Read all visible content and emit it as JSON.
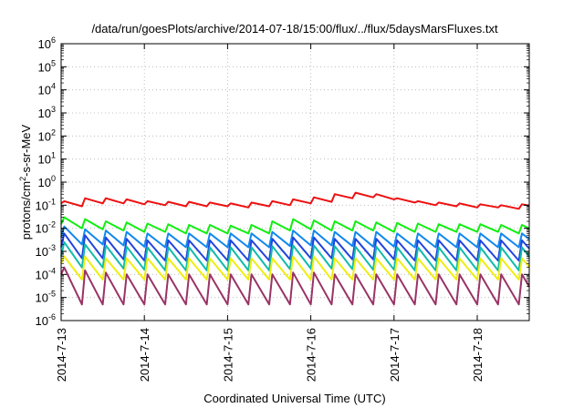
{
  "chart_data": {
    "type": "line",
    "title": "/data/run/goesPlots/archive/2014-07-18/15:00/flux/../flux/5daysMarsFluxes.txt",
    "xlabel": "Coordinated Universal Time (UTC)",
    "ylabel_base": "protons/cm",
    "ylabel_sup": "2",
    "ylabel_rest": "-s-sr-MeV",
    "yscale": "log",
    "ylim": [
      1e-06,
      1000000.0
    ],
    "y_ticks": [
      {
        "base": "10",
        "exp": "-6"
      },
      {
        "base": "10",
        "exp": "-5"
      },
      {
        "base": "10",
        "exp": "-4"
      },
      {
        "base": "10",
        "exp": "-3"
      },
      {
        "base": "10",
        "exp": "-2"
      },
      {
        "base": "10",
        "exp": "-1"
      },
      {
        "base": "10",
        "exp": "0"
      },
      {
        "base": "10",
        "exp": "1"
      },
      {
        "base": "10",
        "exp": "2"
      },
      {
        "base": "10",
        "exp": "3"
      },
      {
        "base": "10",
        "exp": "4"
      },
      {
        "base": "10",
        "exp": "5"
      },
      {
        "base": "10",
        "exp": "6"
      }
    ],
    "xlim": [
      "2014-07-13",
      "2014-07-18T15:00"
    ],
    "x_ticks": [
      "2014-7-13",
      "2014-7-14",
      "2014-7-15",
      "2014-7-16",
      "2014-7-17",
      "2014-7-18"
    ],
    "grid": true,
    "cycles_per_day": 4,
    "series": [
      {
        "color": "#ee1111",
        "start": 0.12,
        "peaks": [
          0.15,
          0.2,
          0.2,
          0.18,
          0.15,
          0.14,
          0.14,
          0.13,
          0.12,
          0.13,
          0.15,
          0.18,
          0.22,
          0.3,
          0.35,
          0.3,
          0.2,
          0.15,
          0.13,
          0.12,
          0.11,
          0.1,
          0.11,
          0.12,
          0.11,
          0.1,
          0.1,
          0.09,
          0.08,
          0.08,
          0.09,
          0.08,
          0.08,
          0.08,
          0.07,
          0.06,
          0.05,
          0.05,
          0.06,
          0.09
        ],
        "valleys": [
          0.09,
          0.12,
          0.12,
          0.11,
          0.1,
          0.09,
          0.09,
          0.09,
          0.08,
          0.09,
          0.1,
          0.12,
          0.14,
          0.2,
          0.22,
          0.18,
          0.13,
          0.1,
          0.09,
          0.08,
          0.08,
          0.07,
          0.08,
          0.08,
          0.07,
          0.07,
          0.07,
          0.06,
          0.06,
          0.06,
          0.06,
          0.055,
          0.055,
          0.055,
          0.05,
          0.045,
          0.04,
          0.04,
          0.045,
          0.06
        ]
      },
      {
        "color": "#11ee11",
        "start": 0.015,
        "peaks": [
          0.03,
          0.025,
          0.02,
          0.018,
          0.016,
          0.015,
          0.014,
          0.014,
          0.013,
          0.014,
          0.02,
          0.025,
          0.022,
          0.02,
          0.02,
          0.018,
          0.017,
          0.016,
          0.015,
          0.015,
          0.015,
          0.014,
          0.014,
          0.015,
          0.014,
          0.014,
          0.013,
          0.013,
          0.013,
          0.014,
          0.013,
          0.013,
          0.013,
          0.012,
          0.013,
          0.013,
          0.012,
          0.012,
          0.012,
          0.012
        ],
        "valleys": [
          0.01,
          0.009,
          0.008,
          0.007,
          0.007,
          0.006,
          0.006,
          0.006,
          0.006,
          0.006,
          0.008,
          0.009,
          0.008,
          0.008,
          0.008,
          0.007,
          0.007,
          0.007,
          0.007,
          0.007,
          0.007,
          0.006,
          0.006,
          0.007,
          0.006,
          0.006,
          0.006,
          0.006,
          0.006,
          0.006,
          0.006,
          0.006,
          0.006,
          0.006,
          0.006,
          0.006,
          0.006,
          0.006,
          0.006,
          0.006
        ]
      },
      {
        "color": "#1188ee",
        "start": 0.004,
        "peaks": [
          0.012,
          0.009,
          0.008,
          0.007,
          0.006,
          0.006,
          0.006,
          0.006,
          0.006,
          0.006,
          0.007,
          0.008,
          0.008,
          0.007,
          0.007,
          0.007,
          0.006,
          0.006,
          0.006,
          0.006,
          0.006,
          0.006,
          0.006,
          0.006,
          0.006,
          0.006,
          0.006,
          0.006,
          0.006,
          0.006,
          0.006,
          0.006,
          0.006,
          0.006,
          0.006,
          0.006,
          0.006,
          0.006,
          0.006,
          0.006
        ],
        "valleys": [
          0.002,
          0.002,
          0.0018,
          0.0016,
          0.0015,
          0.0015,
          0.0015,
          0.0015,
          0.0015,
          0.0015,
          0.0017,
          0.0018,
          0.0018,
          0.0017,
          0.0016,
          0.0016,
          0.0015,
          0.0015,
          0.0015,
          0.0015,
          0.0015,
          0.0015,
          0.0015,
          0.0015,
          0.0015,
          0.0015,
          0.0015,
          0.0015,
          0.0015,
          0.0015,
          0.0015,
          0.0015,
          0.0015,
          0.0015,
          0.0015,
          0.0015,
          0.0015,
          0.0015,
          0.0015,
          0.0015
        ]
      },
      {
        "color": "#2244dd",
        "start": 0.0015,
        "peaks": [
          0.006,
          0.005,
          0.004,
          0.0035,
          0.003,
          0.003,
          0.003,
          0.003,
          0.003,
          0.003,
          0.0035,
          0.004,
          0.004,
          0.0035,
          0.0035,
          0.0035,
          0.003,
          0.003,
          0.003,
          0.003,
          0.003,
          0.003,
          0.003,
          0.003,
          0.003,
          0.003,
          0.003,
          0.003,
          0.003,
          0.003,
          0.003,
          0.003,
          0.003,
          0.003,
          0.003,
          0.003,
          0.003,
          0.003,
          0.003,
          0.003
        ],
        "valleys": [
          0.0005,
          0.0005,
          0.00045,
          0.0004,
          0.0004,
          0.0004,
          0.0004,
          0.0004,
          0.0004,
          0.0004,
          0.00045,
          0.0005,
          0.0005,
          0.00045,
          0.00045,
          0.00045,
          0.0004,
          0.0004,
          0.0004,
          0.0004,
          0.0004,
          0.0004,
          0.0004,
          0.0004,
          0.0004,
          0.0004,
          0.0004,
          0.0004,
          0.0004,
          0.0004,
          0.0004,
          0.0004,
          0.0004,
          0.0004,
          0.0004,
          0.0004,
          0.0004,
          0.0004,
          0.0004,
          0.0004
        ]
      },
      {
        "color": "#11bbaa",
        "start": 0.0006,
        "peaks": [
          0.0025,
          0.002,
          0.0018,
          0.0016,
          0.0015,
          0.0015,
          0.0015,
          0.0015,
          0.0015,
          0.0015,
          0.0017,
          0.0018,
          0.0018,
          0.0017,
          0.0016,
          0.0016,
          0.0015,
          0.0015,
          0.0015,
          0.0015,
          0.0015,
          0.0015,
          0.0015,
          0.0015,
          0.0015,
          0.0015,
          0.0015,
          0.0015,
          0.0015,
          0.0015,
          0.0015,
          0.0015,
          0.0015,
          0.0015,
          0.0015,
          0.0015,
          0.0015,
          0.0015,
          0.0015,
          0.0015
        ],
        "valleys": [
          0.0002,
          0.0002,
          0.00018,
          0.00016,
          0.00015,
          0.00015,
          0.00015,
          0.00015,
          0.00015,
          0.00015,
          0.00017,
          0.00018,
          0.00018,
          0.00017,
          0.00016,
          0.00016,
          0.00015,
          0.00015,
          0.00015,
          0.00015,
          0.00015,
          0.00015,
          0.00015,
          0.00015,
          0.00015,
          0.00015,
          0.00015,
          0.00015,
          0.00015,
          0.00015,
          0.00015,
          0.00015,
          0.00015,
          0.00015,
          0.00015,
          0.00015,
          0.00015,
          0.00015,
          0.00015,
          0.00015
        ]
      },
      {
        "color": "#eeee11",
        "start": 0.0003,
        "peaks": [
          0.0006,
          0.0006,
          0.0005,
          0.0005,
          0.0005,
          0.0005,
          0.0005,
          0.0005,
          0.0005,
          0.0005,
          0.0005,
          0.0006,
          0.0006,
          0.0005,
          0.0005,
          0.0005,
          0.0005,
          0.0005,
          0.0005,
          0.0005,
          0.0005,
          0.0005,
          0.0005,
          0.0005,
          0.0005,
          0.0005,
          0.0005,
          0.0005,
          0.0005,
          0.0005,
          0.0005,
          0.0005,
          0.0005,
          0.0005,
          0.0005,
          0.0005,
          0.0005,
          0.0005,
          0.0005,
          0.0005
        ],
        "valleys": [
          6e-05,
          6e-05,
          6e-05,
          6e-05,
          6e-05,
          6e-05,
          6e-05,
          6e-05,
          6e-05,
          6e-05,
          6e-05,
          6e-05,
          6e-05,
          6e-05,
          6e-05,
          6e-05,
          6e-05,
          6e-05,
          6e-05,
          6e-05,
          6e-05,
          6e-05,
          6e-05,
          6e-05,
          6e-05,
          6e-05,
          6e-05,
          6e-05,
          6e-05,
          6e-05,
          6e-05,
          6e-05,
          6e-05,
          6e-05,
          6e-05,
          6e-05,
          6e-05,
          6e-05,
          6e-05,
          6e-05
        ]
      },
      {
        "color": "#993366",
        "start": 0.0001,
        "peaks": [
          0.0002,
          0.00015,
          0.00012,
          0.0001,
          0.0001,
          0.0001,
          0.0001,
          0.0001,
          0.0001,
          0.0001,
          0.0001,
          0.00012,
          0.00012,
          0.0001,
          0.0001,
          0.0001,
          0.0001,
          0.0001,
          0.0001,
          0.0001,
          0.0001,
          0.0001,
          0.0001,
          0.0001,
          0.0001,
          0.0001,
          0.0001,
          0.0001,
          0.0001,
          0.0001,
          0.0001,
          0.0001,
          0.0001,
          0.0001,
          0.0001,
          0.0001,
          0.0001,
          0.0001,
          0.0001,
          0.0001
        ],
        "valleys": [
          5e-06,
          5e-06,
          5e-06,
          5e-06,
          5e-06,
          5e-06,
          5e-06,
          5e-06,
          5e-06,
          5e-06,
          5e-06,
          5e-06,
          5e-06,
          5e-06,
          5e-06,
          5e-06,
          5e-06,
          5e-06,
          5e-06,
          5e-06,
          5e-06,
          5e-06,
          5e-06,
          5e-06,
          5e-06,
          5e-06,
          5e-06,
          5e-06,
          5e-06,
          5e-06,
          5e-06,
          5e-06,
          5e-06,
          5e-06,
          5e-06,
          5e-06,
          5e-06,
          5e-06,
          5e-06,
          5e-06
        ]
      }
    ]
  }
}
